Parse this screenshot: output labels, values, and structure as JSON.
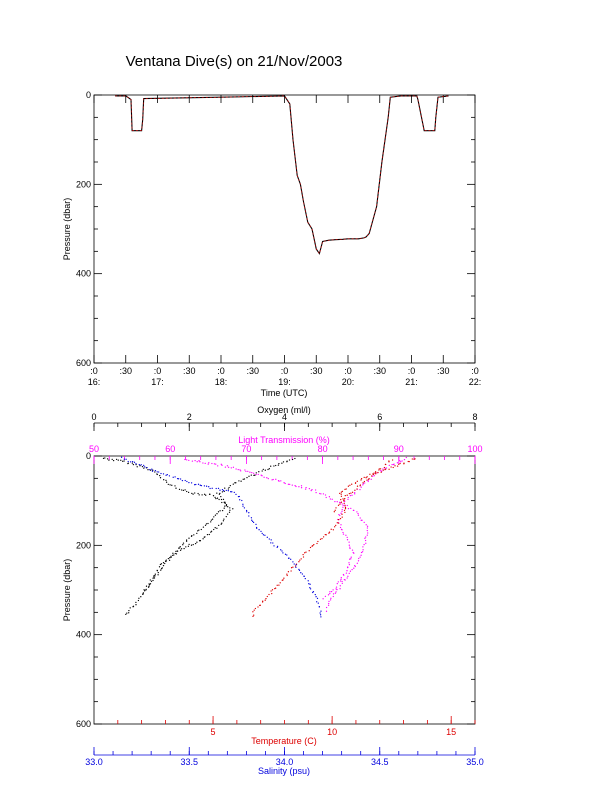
{
  "title": "Ventana Dive(s) on 21/Nov/2003",
  "colors": {
    "frame": "#000000",
    "pressure_trace": "#000000",
    "pressure_trace_overlay": "#dd0000",
    "oxygen": "#000000",
    "light_transmission": "#ff00ff",
    "temperature": "#dd0000",
    "salinity": "#0000dd"
  },
  "chart_data": [
    {
      "type": "line",
      "panel": "top",
      "xlabel": "Time (UTC)",
      "ylabel": "Pressure (dbar)",
      "ylim": [
        0,
        600
      ],
      "y_reversed": true,
      "yticks": [
        0,
        200,
        400,
        600
      ],
      "y_tick_labels": [
        "0",
        "200",
        "400",
        "600"
      ],
      "x_tick_labels_upper": [
        ":0",
        ":30",
        ":0",
        ":30",
        ":0",
        ":30",
        ":0",
        ":30",
        ":0",
        ":30",
        ":0",
        ":30",
        ":0"
      ],
      "x_tick_labels_lower": [
        "16:",
        "",
        "17:",
        "",
        "18:",
        "",
        "19:",
        "",
        "20:",
        "",
        "21:",
        "",
        "22:"
      ],
      "xlim": [
        "16:00",
        "22:00"
      ],
      "series": [
        {
          "x": [
            "16:20",
            "16:30",
            "16:35",
            "16:36",
            "16:45",
            "16:46",
            "16:47",
            "18:00",
            "19:00",
            "19:05",
            "19:08",
            "19:12",
            "19:15",
            "19:18",
            "19:22",
            "19:26",
            "19:30",
            "19:33",
            "19:36",
            "19:42",
            "19:48",
            "19:55",
            "20:00",
            "20:10",
            "20:15",
            "20:17",
            "20:20",
            "20:27",
            "20:32",
            "20:38",
            "20:40",
            "20:50",
            "21:05",
            "21:06",
            "21:12",
            "21:22",
            "21:23",
            "21:25",
            "21:35"
          ],
          "y": [
            2,
            2,
            10,
            80,
            80,
            55,
            8,
            5,
            2,
            20,
            100,
            180,
            200,
            240,
            285,
            300,
            345,
            355,
            328,
            325,
            324,
            323,
            322,
            322,
            320,
            318,
            310,
            250,
            150,
            50,
            5,
            2,
            2,
            10,
            80,
            80,
            50,
            5,
            2
          ]
        }
      ]
    },
    {
      "type": "scatter",
      "panel": "bottom",
      "ylabel": "Pressure (dbar)",
      "ylim": [
        0,
        600
      ],
      "y_reversed": true,
      "yticks": [
        0,
        200,
        400,
        600
      ],
      "y_tick_labels": [
        "0",
        "200",
        "400",
        "600"
      ],
      "axes": [
        {
          "name": "Oxygen (ml/l)",
          "position": "top",
          "range": [
            0,
            8
          ],
          "ticks": [
            0,
            2,
            4,
            6,
            8
          ],
          "tick_labels": [
            "0",
            "2",
            "4",
            "6",
            "8"
          ],
          "color_key": "oxygen"
        },
        {
          "name": "Light Transmission (%)",
          "position": "top-inner",
          "range": [
            50,
            100
          ],
          "ticks": [
            50,
            60,
            70,
            80,
            90,
            100
          ],
          "tick_labels": [
            "50",
            "60",
            "70",
            "80",
            "90",
            "100"
          ],
          "color_key": "light_transmission"
        },
        {
          "name": "Temperature (C)",
          "position": "bottom",
          "range": [
            0,
            16
          ],
          "ticks": [
            5,
            10,
            15
          ],
          "tick_labels": [
            "5",
            "10",
            "15"
          ],
          "color_key": "temperature"
        },
        {
          "name": "Salinity (psu)",
          "position": "bottom-outer",
          "range": [
            33.0,
            35.0
          ],
          "ticks": [
            33.0,
            33.5,
            34.0,
            34.5,
            35.0
          ],
          "tick_labels": [
            "33.0",
            "33.5",
            "34.0",
            "34.5",
            "35.0"
          ],
          "color_key": "salinity"
        }
      ],
      "series": [
        {
          "axis": "Oxygen (ml/l)",
          "color_key": "oxygen",
          "profile": [
            [
              0.2,
              5
            ],
            [
              0.6,
              12
            ],
            [
              1.2,
              30
            ],
            [
              1.6,
              65
            ],
            [
              2.0,
              82
            ],
            [
              2.5,
              88
            ],
            [
              2.9,
              120
            ],
            [
              2.6,
              160
            ],
            [
              2.2,
              190
            ],
            [
              1.8,
              210
            ],
            [
              1.5,
              240
            ],
            [
              1.3,
              270
            ],
            [
              1.1,
              300
            ],
            [
              0.95,
              320
            ],
            [
              0.75,
              345
            ],
            [
              0.65,
              360
            ]
          ]
        },
        {
          "axis": "Oxygen (ml/l)",
          "color_key": "oxygen",
          "profile": [
            [
              4.2,
              5
            ],
            [
              3.6,
              30
            ],
            [
              3.0,
              60
            ],
            [
              2.6,
              84
            ],
            [
              2.8,
              110
            ],
            [
              2.4,
              150
            ],
            [
              2.0,
              185
            ],
            [
              1.7,
              215
            ],
            [
              1.4,
              245
            ],
            [
              1.2,
              280
            ],
            [
              1.0,
              315
            ]
          ]
        },
        {
          "axis": "Light Transmission (%)",
          "color_key": "light_transmission",
          "profile": [
            [
              62,
              8
            ],
            [
              68,
              25
            ],
            [
              73,
              50
            ],
            [
              79,
              78
            ],
            [
              84,
              120
            ],
            [
              86,
              160
            ],
            [
              85.5,
              200
            ],
            [
              84.5,
              240
            ],
            [
              83,
              275
            ],
            [
              82,
              300
            ],
            [
              81,
              322
            ],
            [
              80.5,
              350
            ]
          ]
        },
        {
          "axis": "Light Transmission (%)",
          "color_key": "light_transmission",
          "profile": [
            [
              91,
              5
            ],
            [
              89,
              20
            ],
            [
              87,
              40
            ],
            [
              85,
              70
            ],
            [
              83,
              100
            ],
            [
              82,
              140
            ],
            [
              83,
              180
            ],
            [
              84,
              220
            ],
            [
              83,
              260
            ],
            [
              81.5,
              300
            ],
            [
              80,
              322
            ]
          ]
        },
        {
          "axis": "Temperature (C)",
          "color_key": "temperature",
          "profile": [
            [
              13.5,
              5
            ],
            [
              12.8,
              20
            ],
            [
              11.5,
              45
            ],
            [
              10.3,
              82
            ],
            [
              10.6,
              120
            ],
            [
              10.1,
              160
            ],
            [
              9.2,
              200
            ],
            [
              8.5,
              240
            ],
            [
              7.9,
              280
            ],
            [
              7.3,
              315
            ],
            [
              6.7,
              350
            ],
            [
              6.6,
              362
            ]
          ]
        },
        {
          "axis": "Temperature (C)",
          "color_key": "temperature",
          "profile": [
            [
              12.5,
              8
            ],
            [
              11.8,
              40
            ],
            [
              10.8,
              82
            ],
            [
              10.4,
              100
            ],
            [
              10.0,
              130
            ]
          ]
        },
        {
          "axis": "Salinity (psu)",
          "color_key": "salinity",
          "profile": [
            [
              33.15,
              5
            ],
            [
              33.3,
              30
            ],
            [
              33.5,
              60
            ],
            [
              33.75,
              84
            ],
            [
              33.8,
              120
            ],
            [
              33.85,
              160
            ],
            [
              33.95,
              200
            ],
            [
              34.05,
              240
            ],
            [
              34.12,
              280
            ],
            [
              34.17,
              320
            ],
            [
              34.19,
              350
            ],
            [
              34.2,
              365
            ]
          ]
        }
      ]
    }
  ]
}
